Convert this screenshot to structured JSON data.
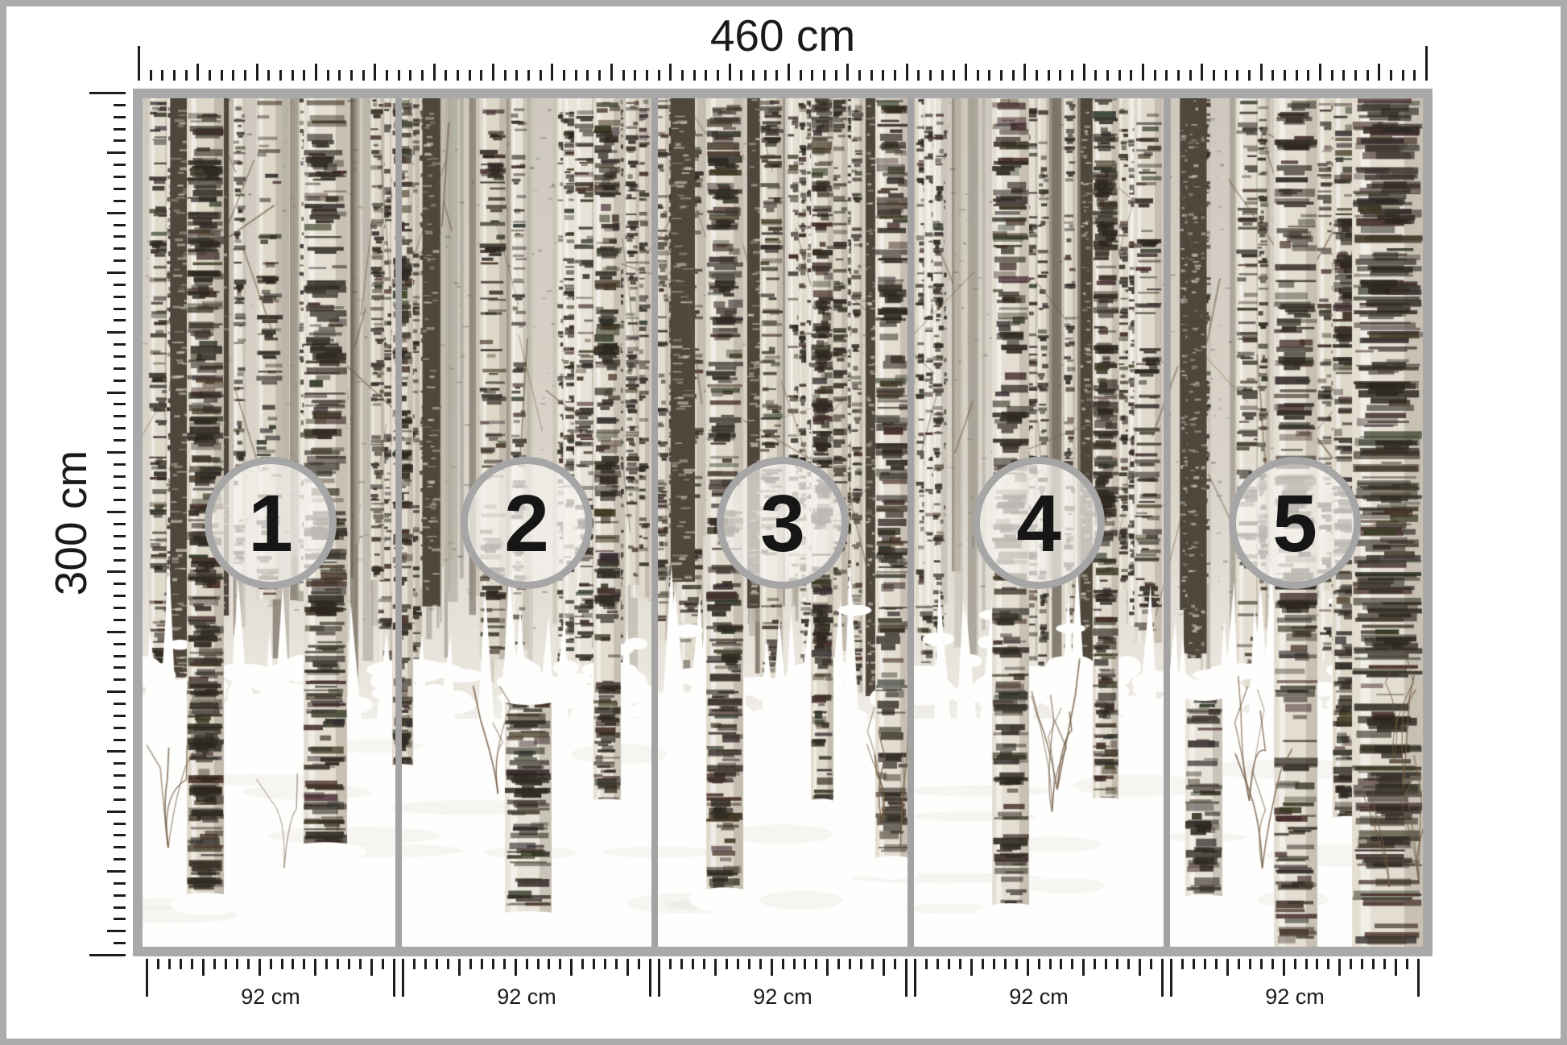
{
  "diagram": {
    "total_width_label": "460 cm",
    "total_height_label": "300 cm",
    "panels": [
      {
        "number": "1",
        "width_label": "92 cm"
      },
      {
        "number": "2",
        "width_label": "92 cm"
      },
      {
        "number": "3",
        "width_label": "92 cm"
      },
      {
        "number": "4",
        "width_label": "92 cm"
      },
      {
        "number": "5",
        "width_label": "92 cm"
      }
    ]
  },
  "colors": {
    "outer_border": "#ababab",
    "photo_frame": "#a9a9a9",
    "panel_divider": "#a3a3a3",
    "circle_ring": "#a6a6a6",
    "circle_fill": "rgba(246,244,240,0.70)",
    "tick": "#1d1d1b",
    "label_text": "#1a1a1a",
    "snow": "#ffffff",
    "bark_light": "#e7e2d8",
    "bark_dark": "#483f34"
  }
}
